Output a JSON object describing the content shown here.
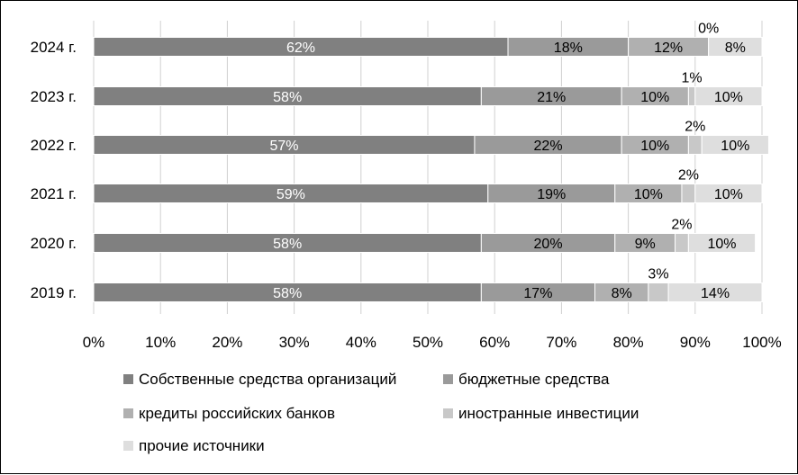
{
  "chart_data": {
    "type": "bar",
    "orientation": "horizontal",
    "stacked": true,
    "categories": [
      "2024 г.",
      "2023 г.",
      "2022 г.",
      "2021 г.",
      "2020 г.",
      "2019 г."
    ],
    "series": [
      {
        "name": "Собственные средства организаций",
        "color": "#808080",
        "label_color": "#ffffff",
        "values": [
          62,
          58,
          57,
          59,
          58,
          58
        ],
        "labels": [
          "62%",
          "58%",
          "57%",
          "59%",
          "58%",
          "58%"
        ]
      },
      {
        "name": "бюджетные средства",
        "color": "#9a9a9a",
        "label_color": "#000000",
        "values": [
          18,
          21,
          22,
          19,
          20,
          17
        ],
        "labels": [
          "18%",
          "21%",
          "22%",
          "19%",
          "20%",
          "17%"
        ]
      },
      {
        "name": "кредиты российских банков",
        "color": "#b0b0b0",
        "label_color": "#000000",
        "values": [
          12,
          10,
          10,
          10,
          9,
          8
        ],
        "labels": [
          "12%",
          "10%",
          "10%",
          "10%",
          "9%",
          "8%"
        ]
      },
      {
        "name": "иностранные инвестиции",
        "color": "#c8c8c8",
        "label_color": "#000000",
        "values": [
          0,
          1,
          2,
          2,
          2,
          3
        ],
        "labels": [
          "0%",
          "1%",
          "2%",
          "2%",
          "2%",
          "3%"
        ]
      },
      {
        "name": "прочие источники",
        "color": "#dedede",
        "label_color": "#000000",
        "values": [
          8,
          10,
          10,
          10,
          10,
          14
        ],
        "labels": [
          "8%",
          "10%",
          "10%",
          "10%",
          "10%",
          "14%"
        ]
      }
    ],
    "x_ticks": [
      "0%",
      "10%",
      "20%",
      "30%",
      "40%",
      "50%",
      "60%",
      "70%",
      "80%",
      "90%",
      "100%"
    ],
    "xlim": [
      0,
      100
    ],
    "grid": true,
    "legend_position": "bottom"
  }
}
